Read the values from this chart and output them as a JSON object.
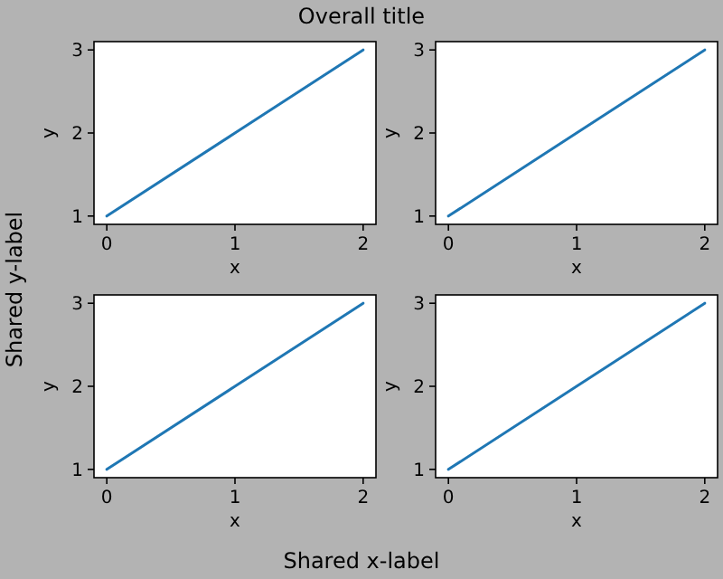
{
  "chart_data": [
    {
      "type": "line",
      "x": [
        0,
        1,
        2
      ],
      "series": [
        {
          "color": "#1f77b4",
          "values": [
            1,
            2,
            3
          ]
        }
      ],
      "xlim": [
        -0.1,
        2.1
      ],
      "ylim": [
        0.9,
        3.1
      ],
      "xticks": [
        0,
        1,
        2
      ],
      "yticks": [
        1,
        2,
        3
      ],
      "xlabel": "x",
      "ylabel": "y"
    },
    {
      "type": "line",
      "x": [
        0,
        1,
        2
      ],
      "series": [
        {
          "color": "#1f77b4",
          "values": [
            1,
            2,
            3
          ]
        }
      ],
      "xlim": [
        -0.1,
        2.1
      ],
      "ylim": [
        0.9,
        3.1
      ],
      "xticks": [
        0,
        1,
        2
      ],
      "yticks": [
        1,
        2,
        3
      ],
      "xlabel": "x",
      "ylabel": "y"
    },
    {
      "type": "line",
      "x": [
        0,
        1,
        2
      ],
      "series": [
        {
          "color": "#1f77b4",
          "values": [
            1,
            2,
            3
          ]
        }
      ],
      "xlim": [
        -0.1,
        2.1
      ],
      "ylim": [
        0.9,
        3.1
      ],
      "xticks": [
        0,
        1,
        2
      ],
      "yticks": [
        1,
        2,
        3
      ],
      "xlabel": "x",
      "ylabel": "y"
    },
    {
      "type": "line",
      "x": [
        0,
        1,
        2
      ],
      "series": [
        {
          "color": "#1f77b4",
          "values": [
            1,
            2,
            3
          ]
        }
      ],
      "xlim": [
        -0.1,
        2.1
      ],
      "ylim": [
        0.9,
        3.1
      ],
      "xticks": [
        0,
        1,
        2
      ],
      "yticks": [
        1,
        2,
        3
      ],
      "xlabel": "x",
      "ylabel": "y"
    },
    {
      "type": "other",
      "title": "Overall title",
      "xlabel": "Shared x-label",
      "ylabel": "Shared y-label"
    }
  ]
}
